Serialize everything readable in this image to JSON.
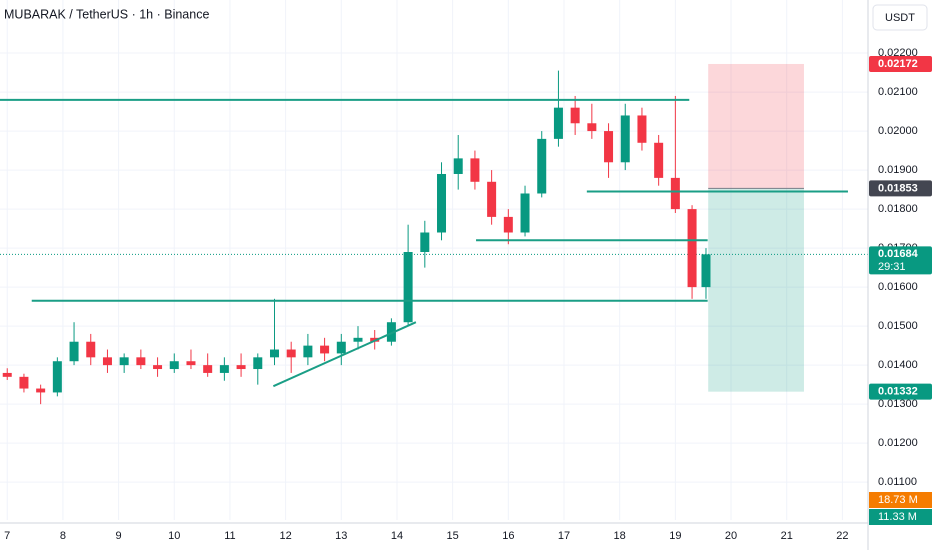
{
  "chart_data": {
    "type": "candlestick",
    "title": "MUBARAK / TetherUS · 1h · Binance",
    "currency": "USDT",
    "up_color": "#089981",
    "down_color": "#f23645",
    "grid": true,
    "xlim": [
      6.87,
      22.46
    ],
    "xticks": [
      7,
      8,
      9,
      10,
      11,
      12,
      13,
      14,
      15,
      16,
      17,
      18,
      19,
      20,
      21,
      22
    ],
    "ylim": [
      0.01003,
      0.02336
    ],
    "yticks": [
      {
        "value": 0.011,
        "label": "0.01100"
      },
      {
        "value": 0.012,
        "label": "0.01200"
      },
      {
        "value": 0.013,
        "label": "0.01300"
      },
      {
        "value": 0.014,
        "label": "0.01400"
      },
      {
        "value": 0.015,
        "label": "0.01500"
      },
      {
        "value": 0.016,
        "label": "0.01600"
      },
      {
        "value": 0.017,
        "label": "0.01700"
      },
      {
        "value": 0.018,
        "label": "0.01800"
      },
      {
        "value": 0.019,
        "label": "0.01900"
      },
      {
        "value": 0.02,
        "label": "0.02000"
      },
      {
        "value": 0.021,
        "label": "0.02100"
      },
      {
        "value": 0.022,
        "label": "0.02200"
      }
    ],
    "x": [
      7.0,
      7.3,
      7.6,
      7.9,
      8.2,
      8.5,
      8.8,
      9.1,
      9.4,
      9.7,
      10.0,
      10.3,
      10.6,
      10.9,
      11.2,
      11.5,
      11.8,
      12.1,
      12.4,
      12.7,
      13.0,
      13.3,
      13.6,
      13.9,
      14.2,
      14.5,
      14.8,
      15.1,
      15.4,
      15.7,
      16.0,
      16.3,
      16.6,
      16.9,
      17.2,
      17.5,
      17.8,
      18.1,
      18.4,
      18.7,
      19.0,
      19.3,
      19.55
    ],
    "open": [
      0.0138,
      0.0137,
      0.0134,
      0.0133,
      0.0141,
      0.0146,
      0.0142,
      0.014,
      0.0142,
      0.014,
      0.0139,
      0.0141,
      0.014,
      0.0138,
      0.014,
      0.0139,
      0.0142,
      0.0144,
      0.0142,
      0.0145,
      0.0143,
      0.0146,
      0.0147,
      0.0146,
      0.0151,
      0.0169,
      0.0174,
      0.0189,
      0.0193,
      0.0187,
      0.0178,
      0.0174,
      0.0184,
      0.0198,
      0.0206,
      0.0202,
      0.02,
      0.0192,
      0.0204,
      0.0197,
      0.0188,
      0.018,
      0.016
    ],
    "high": [
      0.01392,
      0.01378,
      0.0135,
      0.0142,
      0.0151,
      0.0148,
      0.0144,
      0.0143,
      0.0144,
      0.0142,
      0.0143,
      0.0144,
      0.0143,
      0.0142,
      0.0143,
      0.0143,
      0.0157,
      0.0146,
      0.0148,
      0.0147,
      0.0148,
      0.015,
      0.0149,
      0.0152,
      0.0176,
      0.0177,
      0.0192,
      0.0199,
      0.0195,
      0.019,
      0.018,
      0.0186,
      0.02,
      0.02155,
      0.0209,
      0.0207,
      0.0202,
      0.0207,
      0.0206,
      0.0199,
      0.0209,
      0.0181,
      0.017
    ],
    "low": [
      0.01362,
      0.0133,
      0.013,
      0.0132,
      0.014,
      0.014,
      0.0138,
      0.0138,
      0.0139,
      0.0137,
      0.0138,
      0.0139,
      0.0137,
      0.0136,
      0.0137,
      0.0135,
      0.014,
      0.0138,
      0.014,
      0.0141,
      0.014,
      0.0144,
      0.0144,
      0.0145,
      0.015,
      0.0165,
      0.0172,
      0.0185,
      0.0185,
      0.0176,
      0.0171,
      0.0173,
      0.0183,
      0.0196,
      0.0199,
      0.0198,
      0.0188,
      0.019,
      0.0195,
      0.0186,
      0.0179,
      0.0157,
      0.0157
    ],
    "close": [
      0.0137,
      0.0134,
      0.0133,
      0.0141,
      0.0146,
      0.0142,
      0.014,
      0.0142,
      0.014,
      0.0139,
      0.0141,
      0.014,
      0.0138,
      0.014,
      0.0139,
      0.0142,
      0.0144,
      0.0142,
      0.0145,
      0.0143,
      0.0146,
      0.0147,
      0.0146,
      0.0151,
      0.0169,
      0.0174,
      0.0189,
      0.0193,
      0.0187,
      0.0178,
      0.0174,
      0.0184,
      0.0198,
      0.0206,
      0.0202,
      0.02,
      0.0192,
      0.0204,
      0.0197,
      0.0188,
      0.018,
      0.016,
      0.01684
    ],
    "countdown": "29:31",
    "drawings": [
      {
        "x": [
          6.87,
          19.25
        ],
        "y": [
          0.0208,
          0.0208
        ]
      },
      {
        "x": [
          7.44,
          19.58
        ],
        "y": [
          0.01565,
          0.01565
        ]
      },
      {
        "x": [
          15.42,
          19.58
        ],
        "y": [
          0.0172,
          0.0172
        ]
      },
      {
        "x": [
          17.41,
          22.1
        ],
        "y": [
          0.01845,
          0.01845
        ]
      },
      {
        "x": [
          11.78,
          14.34
        ],
        "y": [
          0.01346,
          0.0151
        ]
      }
    ],
    "position": {
      "x": [
        19.59,
        21.31
      ],
      "entry": 0.01853,
      "stop": 0.02172,
      "target": 0.01332
    },
    "volume_tags": [
      "18.73 M",
      "11.33 M"
    ]
  }
}
